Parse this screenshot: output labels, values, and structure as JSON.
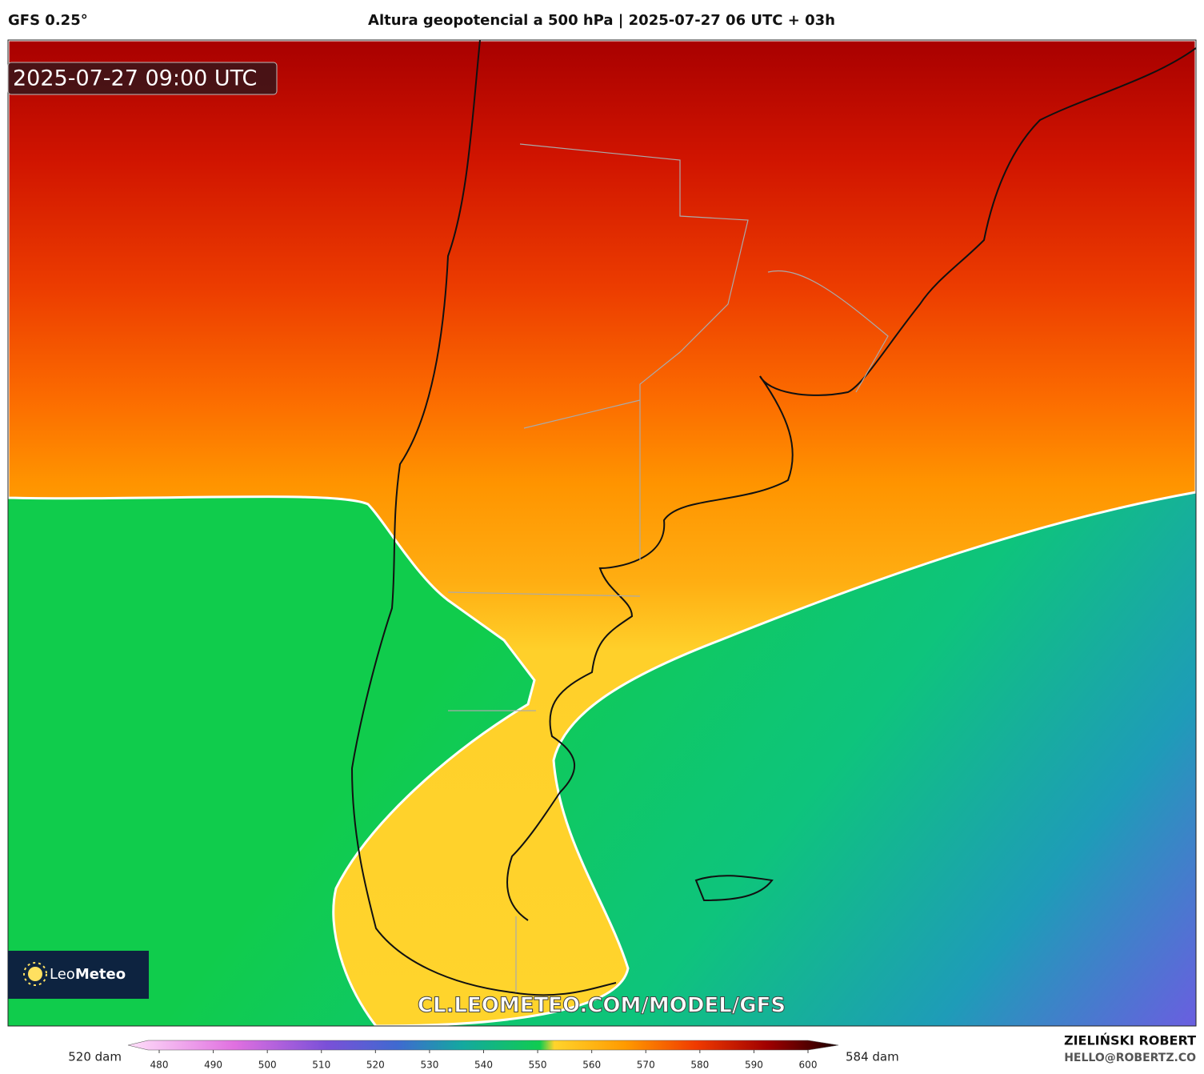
{
  "header": {
    "model": "GFS 0.25°",
    "title": "Altura geopotencial a 500 hPa | 2025-07-27 06 UTC + 03h"
  },
  "map": {
    "valid_time": "2025-07-27 09:00 UTC",
    "watermark": "CL.LEOMETEO.COM/MODEL/GFS",
    "logo_light": "Leo",
    "logo_bold": "Meteo"
  },
  "colorbar": {
    "min_label": "520 dam",
    "max_label": "584 dam",
    "ticks": [
      480,
      490,
      500,
      510,
      520,
      530,
      540,
      550,
      560,
      570,
      580,
      590,
      600
    ]
  },
  "credits": {
    "author": "ZIELIŃSKI ROBERT",
    "email": "HELLO@ROBERTZ.CO"
  }
}
